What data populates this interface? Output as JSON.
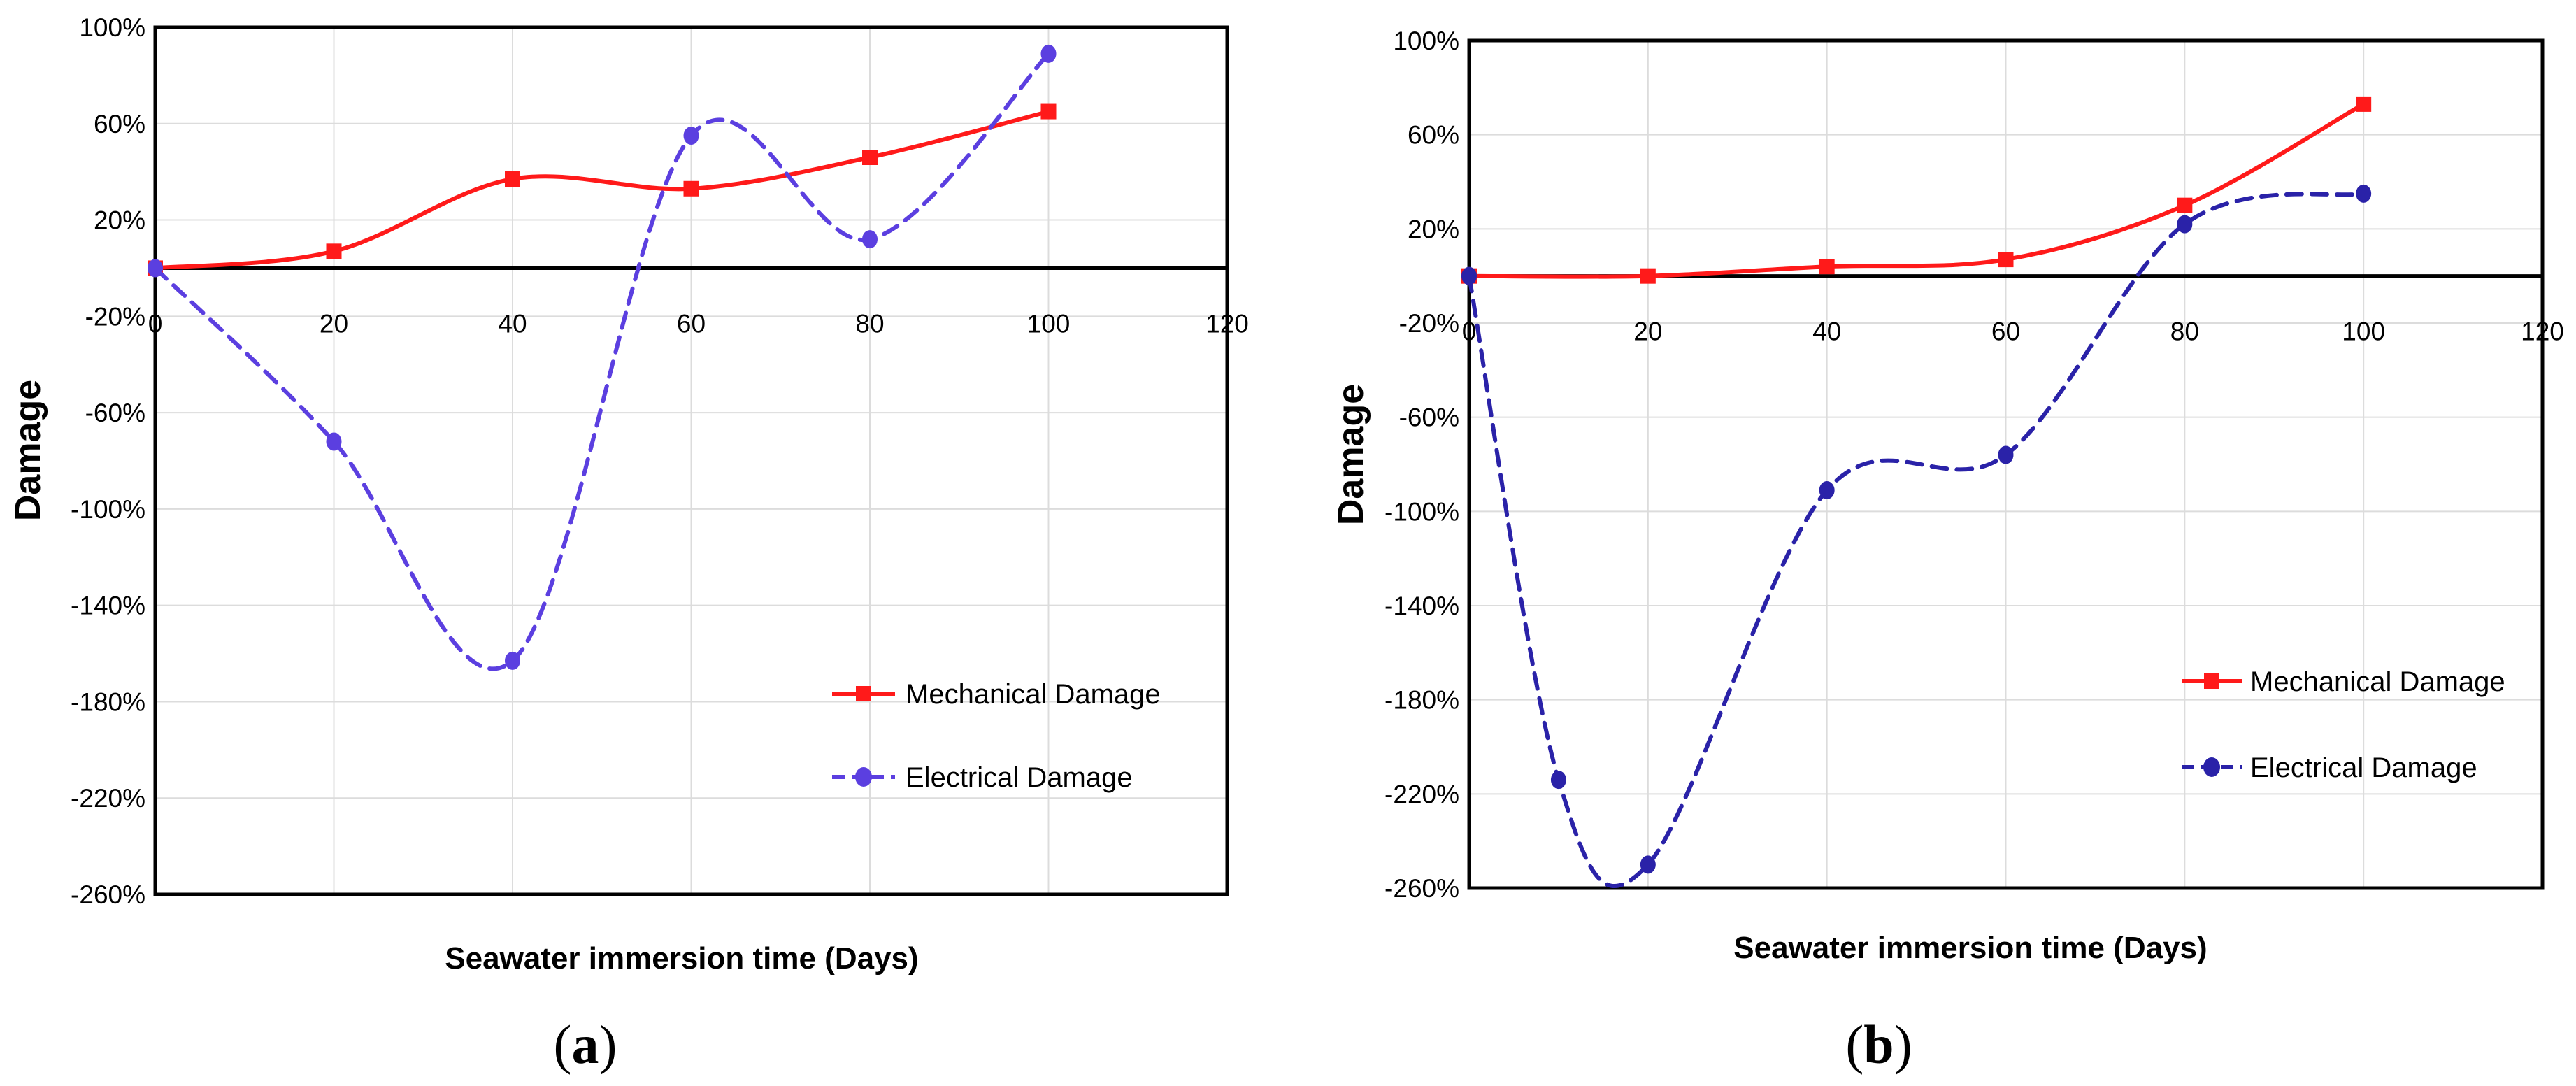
{
  "chart_data": [
    {
      "type": "line",
      "caption": "a",
      "xlabel": "Seawater immersion time (Days)",
      "ylabel": "Damage",
      "xlim": [
        0,
        120
      ],
      "ylim": [
        -2.6,
        1.0
      ],
      "x_ticks": [
        "0",
        "20",
        "40",
        "60",
        "80",
        "100",
        "120"
      ],
      "y_ticks": [
        "100%",
        "60%",
        "20%",
        "-20%",
        "-60%",
        "-100%",
        "-140%",
        "-180%",
        "-220%",
        "-260%"
      ],
      "grid": true,
      "legend_position": "bottom-right",
      "series": [
        {
          "name": "Mechanical Damage",
          "color": "#ff1a1a",
          "marker": "square",
          "style": "solid",
          "x": [
            0,
            20,
            40,
            60,
            80,
            100
          ],
          "y": [
            0.0,
            0.07,
            0.37,
            0.33,
            0.46,
            0.65
          ]
        },
        {
          "name": "Electrical Damage",
          "color": "#5b3fe0",
          "marker": "circle",
          "style": "dashed",
          "x": [
            0,
            20,
            40,
            60,
            80,
            100
          ],
          "y": [
            0.0,
            -0.72,
            -1.63,
            0.55,
            0.12,
            0.89
          ]
        }
      ]
    },
    {
      "type": "line",
      "caption": "b",
      "xlabel": "Seawater immersion time (Days)",
      "ylabel": "Damage",
      "xlim": [
        0,
        120
      ],
      "ylim": [
        -2.6,
        1.0
      ],
      "x_ticks": [
        "0",
        "20",
        "40",
        "60",
        "80",
        "100",
        "120"
      ],
      "y_ticks": [
        "100%",
        "60%",
        "20%",
        "-20%",
        "-60%",
        "-100%",
        "-140%",
        "-180%",
        "-220%",
        "-260%"
      ],
      "grid": true,
      "legend_position": "bottom-right",
      "series": [
        {
          "name": "Mechanical Damage",
          "color": "#ff1a1a",
          "marker": "square",
          "style": "solid",
          "x": [
            0,
            20,
            40,
            60,
            80,
            100
          ],
          "y": [
            0.0,
            0.0,
            0.04,
            0.07,
            0.3,
            0.73
          ]
        },
        {
          "name": "Electrical Damage",
          "color": "#2a22a8",
          "marker": "circle",
          "style": "dashed",
          "x": [
            0,
            10,
            20,
            40,
            60,
            80,
            100
          ],
          "y": [
            0.0,
            -2.14,
            -2.5,
            -0.91,
            -0.76,
            0.22,
            0.35
          ]
        }
      ]
    }
  ]
}
